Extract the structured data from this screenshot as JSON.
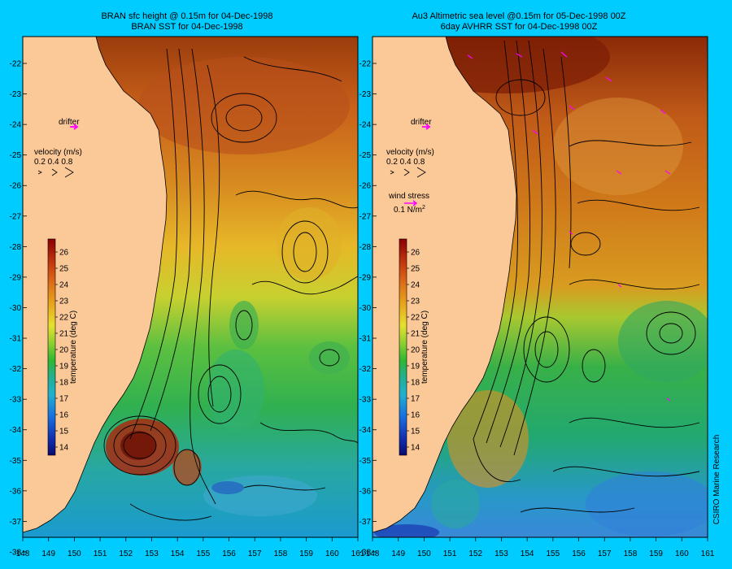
{
  "left_panel": {
    "title_line1": "BRAN sfc height @ 0.15m  for 04-Dec-1998",
    "title_line2": "BRAN SST for 04-Dec-1998",
    "drifter_label": "drifter",
    "velocity_label": "velocity (m/s)",
    "velocity_scale": "0.2 0.4 0.8",
    "colorbar_label": "temperature (deg C)"
  },
  "right_panel": {
    "title_line1": "Au3 Altimetric sea level  @0.15m  for 05-Dec-1998 00Z",
    "title_line2": "6day AVHRR SST for 04-Dec-1998 00Z",
    "drifter_label": "drifter",
    "velocity_label": "velocity (m/s)",
    "velocity_scale": "0.2 0.4 0.8",
    "wind_label": "wind stress",
    "wind_scale": "0.1 N/m",
    "wind_scale_exp": "2",
    "colorbar_label": "temperature (deg C)"
  },
  "credit": "CSIRO Marine Research",
  "map": {
    "lon_ticks": [
      "148",
      "149",
      "150",
      "151",
      "152",
      "153",
      "154",
      "155",
      "156",
      "157",
      "158",
      "159",
      "160",
      "161"
    ],
    "lat_ticks": [
      "-22",
      "-23",
      "-24",
      "-25",
      "-26",
      "-27",
      "-28",
      "-29",
      "-30",
      "-31",
      "-32",
      "-33",
      "-34",
      "-35",
      "-36",
      "-37",
      "-38"
    ],
    "colorbar_ticks": [
      "26",
      "25",
      "24",
      "23",
      "22",
      "21",
      "20",
      "19",
      "18",
      "17",
      "16",
      "15",
      "14"
    ],
    "colorbar_range": [
      13.5,
      26.8
    ],
    "colors": {
      "land": "#fbc898",
      "frame": "#00ccff",
      "warm": "#c05010",
      "cool": "#18a0d0",
      "drifter": "#ff00ff"
    }
  }
}
